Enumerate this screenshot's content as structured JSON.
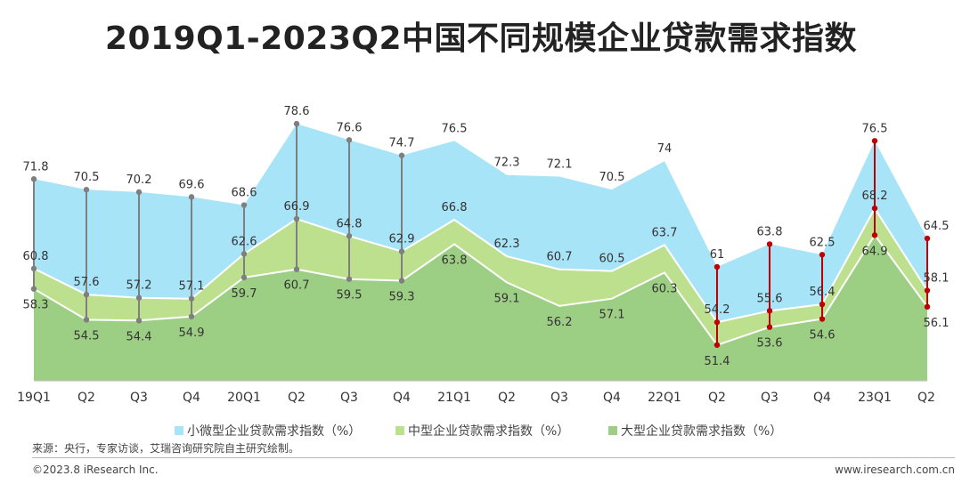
{
  "title": "2019Q1-2023Q2中国不同规模企业贷款需求指数",
  "source": "来源：央行，专家访谈，艾瑞咨询研究院自主研究绘制。",
  "copyright": "©2023.8 iResearch Inc.",
  "website": "www.iresearch.com.cn",
  "chart_data": {
    "type": "area",
    "categories": [
      "19Q1",
      "Q2",
      "Q3",
      "Q4",
      "20Q1",
      "Q2",
      "Q3",
      "Q4",
      "21Q1",
      "Q2",
      "Q3",
      "Q4",
      "22Q1",
      "Q2",
      "Q3",
      "Q4",
      "23Q1",
      "Q2"
    ],
    "series": [
      {
        "name": "小微型企业贷款需求指数（%）",
        "color": "#a8e4f8",
        "values": [
          71.8,
          70.5,
          70.2,
          69.6,
          68.6,
          78.6,
          76.6,
          74.7,
          76.5,
          72.3,
          72.1,
          70.5,
          74,
          61,
          63.8,
          62.5,
          76.5,
          64.5
        ]
      },
      {
        "name": "中型企业贷款需求指数（%）",
        "color": "#bde08e",
        "values": [
          60.8,
          57.6,
          57.2,
          57.1,
          62.6,
          66.9,
          64.8,
          62.9,
          66.8,
          62.3,
          60.7,
          60.5,
          63.7,
          54.2,
          55.6,
          56.4,
          68.2,
          58.1
        ]
      },
      {
        "name": "大型企业贷款需求指数（%）",
        "color": "#9ccf84",
        "values": [
          58.3,
          54.5,
          54.4,
          54.9,
          59.7,
          60.7,
          59.5,
          59.3,
          63.8,
          59.1,
          56.2,
          57.1,
          60.3,
          51.4,
          53.6,
          54.6,
          64.9,
          56.1
        ]
      }
    ],
    "ylim": [
      47,
      82
    ],
    "drop_lines": [
      {
        "index": 0,
        "color": "#7f7f7f"
      },
      {
        "index": 1,
        "color": "#7f7f7f"
      },
      {
        "index": 2,
        "color": "#7f7f7f"
      },
      {
        "index": 3,
        "color": "#7f7f7f"
      },
      {
        "index": 4,
        "color": "#7f7f7f"
      },
      {
        "index": 5,
        "color": "#7f7f7f"
      },
      {
        "index": 6,
        "color": "#7f7f7f"
      },
      {
        "index": 7,
        "color": "#7f7f7f"
      },
      {
        "index": 13,
        "color": "#c00000"
      },
      {
        "index": 14,
        "color": "#c00000"
      },
      {
        "index": 15,
        "color": "#c00000"
      },
      {
        "index": 16,
        "color": "#c00000"
      },
      {
        "index": 17,
        "color": "#c00000"
      }
    ],
    "legend_position": "bottom"
  }
}
